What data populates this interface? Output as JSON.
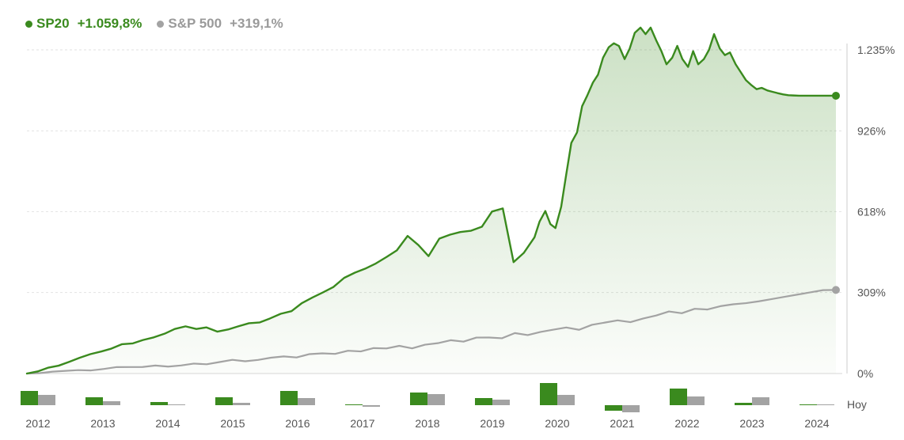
{
  "legend": {
    "sp20": {
      "name": "SP20",
      "value": "+1.059,8%",
      "color": "#3a8a1e"
    },
    "sp500": {
      "name": "S&P 500",
      "value": "+319,1%",
      "color": "#a3a3a3"
    }
  },
  "chart_data": {
    "type": "line",
    "y_axis_labels": [
      "1.235%",
      "926%",
      "618%",
      "309%",
      "0%"
    ],
    "y_ticks": [
      1235,
      926,
      618,
      309,
      0
    ],
    "ylim": [
      0,
      1235
    ],
    "xlim": [
      2012.0,
      2024.85
    ],
    "grid": true,
    "legend_placement": "top-left",
    "series": [
      {
        "name": "SP20",
        "color": "#3a8a1e",
        "x": [
          2012.0,
          2012.17,
          2012.33,
          2012.5,
          2012.67,
          2012.83,
          2013.0,
          2013.17,
          2013.33,
          2013.5,
          2013.67,
          2013.83,
          2014.0,
          2014.17,
          2014.33,
          2014.5,
          2014.67,
          2014.83,
          2015.0,
          2015.17,
          2015.33,
          2015.5,
          2015.67,
          2015.83,
          2016.0,
          2016.17,
          2016.33,
          2016.5,
          2016.67,
          2016.83,
          2017.0,
          2017.17,
          2017.33,
          2017.5,
          2017.67,
          2017.83,
          2018.0,
          2018.17,
          2018.33,
          2018.5,
          2018.67,
          2018.83,
          2019.0,
          2019.17,
          2019.33,
          2019.5,
          2019.67,
          2019.83,
          2020.0,
          2020.08,
          2020.17,
          2020.25,
          2020.33,
          2020.42,
          2020.5,
          2020.58,
          2020.67,
          2020.75,
          2020.83,
          2020.92,
          2021.0,
          2021.08,
          2021.17,
          2021.25,
          2021.33,
          2021.42,
          2021.5,
          2021.58,
          2021.67,
          2021.75,
          2021.83,
          2021.92,
          2022.0,
          2022.08,
          2022.17,
          2022.25,
          2022.33,
          2022.42,
          2022.5,
          2022.58,
          2022.67,
          2022.75,
          2022.83,
          2022.92,
          2023.0,
          2023.08,
          2023.17,
          2023.25,
          2023.33,
          2023.42,
          2023.5,
          2023.58,
          2023.67,
          2023.75,
          2023.83,
          2023.92,
          2024.0,
          2024.08,
          2024.17,
          2024.25,
          2024.33,
          2024.42,
          2024.5,
          2024.58,
          2024.67,
          2024.75
        ],
        "values": [
          0,
          8,
          22,
          30,
          45,
          60,
          74,
          84,
          95,
          112,
          115,
          128,
          138,
          152,
          170,
          180,
          170,
          176,
          160,
          168,
          180,
          192,
          195,
          210,
          228,
          238,
          268,
          290,
          310,
          330,
          365,
          385,
          400,
          420,
          445,
          470,
          525,
          490,
          448,
          515,
          530,
          540,
          545,
          560,
          618,
          630,
          425,
          460,
          520,
          580,
          620,
          570,
          555,
          636,
          760,
          880,
          920,
          1020,
          1060,
          1110,
          1140,
          1205,
          1245,
          1260,
          1250,
          1200,
          1240,
          1300,
          1320,
          1295,
          1320,
          1270,
          1230,
          1180,
          1205,
          1250,
          1200,
          1170,
          1230,
          1180,
          1200,
          1235,
          1295,
          1240,
          1215,
          1225,
          1180,
          1150,
          1120,
          1100,
          1085,
          1090,
          1080,
          1075,
          1070,
          1065,
          1062,
          1061,
          1060,
          1060,
          1060,
          1060,
          1060,
          1060,
          1060,
          1060
        ]
      },
      {
        "name": "S&P 500",
        "color": "#a3a3a3",
        "x": [
          2012.0,
          2024.75
        ],
        "values": [
          0,
          319
        ]
      }
    ]
  },
  "bars": {
    "years": [
      "2012",
      "2013",
      "2014",
      "2015",
      "2016",
      "2017",
      "2018",
      "2019",
      "2020",
      "2021",
      "2022",
      "2023",
      "2024"
    ],
    "sp20": [
      18,
      10,
      4,
      10,
      18,
      1,
      16,
      9,
      28,
      -7,
      21,
      3,
      1
    ],
    "sp500": [
      13,
      5,
      1,
      3,
      9,
      -2,
      14,
      7,
      13,
      -9,
      11,
      10,
      1
    ],
    "last_label": "Hoy"
  }
}
